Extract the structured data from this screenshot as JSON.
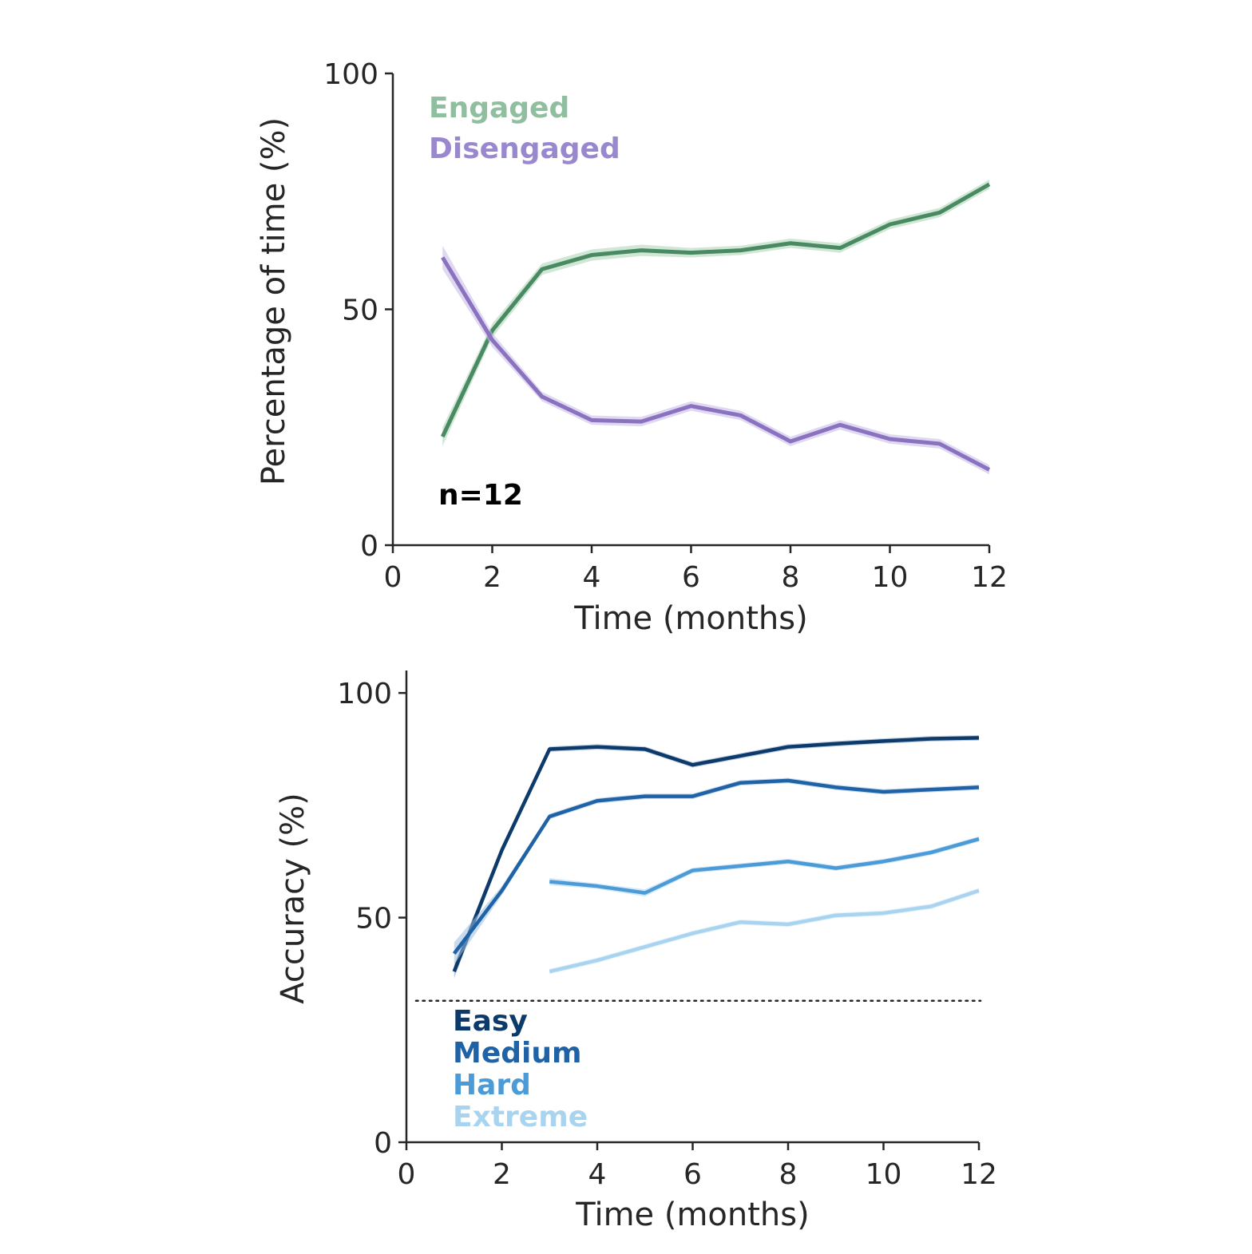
{
  "chart_data": [
    {
      "type": "line",
      "xlabel": "Time (months)",
      "ylabel": "Percentage of time (%)",
      "xlim": [
        0,
        12
      ],
      "ylim": [
        0,
        100
      ],
      "xticks": [
        0,
        2,
        4,
        6,
        8,
        10,
        12
      ],
      "yticks": [
        0,
        50,
        100
      ],
      "grid": false,
      "legend_position": "top-left",
      "annotation": "n=12",
      "x": [
        1,
        2,
        3,
        4,
        5,
        6,
        7,
        8,
        9,
        10,
        11,
        12
      ],
      "series": [
        {
          "name": "Engaged",
          "color": "#4a8a62",
          "legend_color": "#8fbf9f",
          "band_color": "#a9d3b5",
          "values": [
            23.0,
            45.5,
            58.5,
            61.5,
            62.5,
            62.0,
            62.5,
            64.0,
            63.0,
            68.0,
            70.5,
            76.5
          ],
          "band": [
            2.0,
            1.5,
            1.2,
            1.2,
            1.2,
            1.0,
            1.0,
            1.0,
            1.0,
            1.0,
            1.0,
            1.0
          ]
        },
        {
          "name": "Disengaged",
          "color": "#8a72c0",
          "legend_color": "#9a88cf",
          "band_color": "#c5b8e6",
          "values": [
            61.0,
            43.5,
            31.5,
            26.5,
            26.2,
            29.5,
            27.5,
            22.0,
            25.5,
            22.5,
            21.5,
            16.0
          ],
          "band": [
            2.5,
            1.5,
            1.0,
            1.0,
            1.0,
            1.0,
            1.0,
            1.0,
            1.0,
            1.0,
            1.0,
            1.0
          ]
        }
      ]
    },
    {
      "type": "line",
      "xlabel": "Time (months)",
      "ylabel": "Accuracy (%)",
      "xlim": [
        0,
        12
      ],
      "ylim": [
        0,
        105
      ],
      "xticks": [
        0,
        2,
        4,
        6,
        8,
        10,
        12
      ],
      "yticks": [
        0,
        50,
        100
      ],
      "grid": false,
      "legend_position": "bottom-left",
      "chance_level": 31.5,
      "series": [
        {
          "name": "Easy",
          "color": "#0b3a6b",
          "band_color": "#8aa4c2",
          "x": [
            1,
            2,
            3,
            4,
            5,
            6,
            7,
            8,
            9,
            10,
            11,
            12
          ],
          "values": [
            38.0,
            65.0,
            87.5,
            88.0,
            87.5,
            84.0,
            86.0,
            88.0,
            88.7,
            89.3,
            89.8,
            90.0
          ],
          "band": [
            1.5,
            1.0,
            0.6,
            0.6,
            0.6,
            0.6,
            0.6,
            0.6,
            0.6,
            0.6,
            0.6,
            0.6
          ]
        },
        {
          "name": "Medium",
          "color": "#1f63a6",
          "band_color": "#9dbde0",
          "x": [
            1,
            2,
            3,
            4,
            5,
            6,
            7,
            8,
            9,
            10,
            11,
            12
          ],
          "values": [
            42.0,
            56.0,
            72.5,
            76.0,
            77.0,
            77.0,
            80.0,
            80.5,
            79.0,
            78.0,
            78.5,
            79.0
          ],
          "band": [
            2.5,
            1.0,
            0.6,
            0.6,
            0.6,
            0.6,
            0.6,
            0.6,
            0.6,
            0.6,
            0.6,
            0.6
          ]
        },
        {
          "name": "Hard",
          "color": "#4a9bd8",
          "band_color": "#b3d6f0",
          "x": [
            3,
            4,
            5,
            6,
            7,
            8,
            9,
            10,
            11,
            12
          ],
          "values": [
            58.0,
            57.0,
            55.5,
            60.5,
            61.5,
            62.5,
            61.0,
            62.5,
            64.5,
            67.5
          ],
          "band": [
            0.8,
            0.6,
            0.8,
            0.6,
            0.6,
            0.6,
            0.6,
            0.6,
            0.6,
            0.6
          ]
        },
        {
          "name": "Extreme",
          "color": "#a9d4ef",
          "band_color": "#d4eaf8",
          "x": [
            3,
            4,
            5,
            6,
            7,
            8,
            9,
            10,
            11,
            12
          ],
          "values": [
            38.0,
            40.5,
            43.5,
            46.5,
            49.0,
            48.5,
            50.5,
            51.0,
            52.5,
            56.0
          ],
          "band": [
            0.6,
            0.6,
            0.6,
            0.6,
            0.6,
            0.6,
            0.6,
            0.6,
            0.6,
            0.6
          ]
        }
      ]
    }
  ]
}
